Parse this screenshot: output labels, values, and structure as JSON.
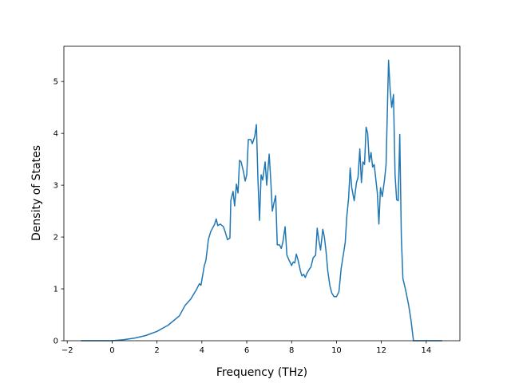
{
  "chart_data": {
    "type": "line",
    "xlabel": "Frequency (THz)",
    "ylabel": "Density of States",
    "color": "#1f77b4",
    "x": [
      -1.39,
      0,
      0.5,
      1.0,
      1.5,
      2.0,
      2.5,
      3.0,
      3.25,
      3.5,
      3.75,
      3.89,
      3.96,
      4.11,
      4.18,
      4.29,
      4.39,
      4.57,
      4.64,
      4.71,
      4.82,
      4.96,
      5.04,
      5.14,
      5.25,
      5.29,
      5.39,
      5.46,
      5.54,
      5.61,
      5.68,
      5.75,
      5.86,
      5.93,
      6.0,
      6.07,
      6.18,
      6.25,
      6.36,
      6.43,
      6.5,
      6.57,
      6.64,
      6.71,
      6.82,
      6.89,
      7.0,
      7.07,
      7.14,
      7.21,
      7.29,
      7.36,
      7.46,
      7.54,
      7.61,
      7.71,
      7.79,
      7.89,
      8.0,
      8.07,
      8.14,
      8.21,
      8.29,
      8.39,
      8.46,
      8.54,
      8.61,
      8.68,
      8.79,
      8.86,
      8.96,
      9.07,
      9.14,
      9.21,
      9.29,
      9.39,
      9.46,
      9.54,
      9.61,
      9.71,
      9.79,
      9.89,
      10.0,
      10.11,
      10.21,
      10.32,
      10.39,
      10.46,
      10.54,
      10.61,
      10.68,
      10.79,
      10.89,
      10.96,
      11.04,
      11.11,
      11.18,
      11.25,
      11.32,
      11.39,
      11.46,
      11.54,
      11.61,
      11.68,
      11.82,
      11.89,
      11.96,
      12.04,
      12.14,
      12.21,
      12.32,
      12.39,
      12.46,
      12.54,
      12.61,
      12.68,
      12.75,
      12.82,
      12.89,
      12.96,
      13.07,
      13.21,
      13.32,
      13.43,
      14.71
    ],
    "values": [
      0,
      0,
      0.02,
      0.05,
      0.1,
      0.18,
      0.3,
      0.48,
      0.68,
      0.8,
      0.98,
      1.1,
      1.07,
      1.45,
      1.55,
      1.95,
      2.1,
      2.25,
      2.35,
      2.22,
      2.25,
      2.2,
      2.1,
      1.95,
      1.98,
      2.7,
      2.88,
      2.6,
      3.02,
      2.85,
      3.48,
      3.45,
      3.25,
      3.08,
      3.2,
      3.88,
      3.88,
      3.8,
      3.95,
      4.17,
      3.1,
      2.32,
      3.2,
      3.1,
      3.45,
      3.0,
      3.6,
      3.1,
      2.5,
      2.65,
      2.8,
      1.85,
      1.85,
      1.78,
      1.9,
      2.2,
      1.65,
      1.55,
      1.45,
      1.52,
      1.5,
      1.67,
      1.55,
      1.35,
      1.25,
      1.28,
      1.22,
      1.3,
      1.38,
      1.42,
      1.6,
      1.65,
      2.17,
      1.95,
      1.75,
      2.15,
      2.0,
      1.7,
      1.35,
      1.05,
      0.92,
      0.85,
      0.85,
      0.95,
      1.4,
      1.7,
      1.9,
      2.4,
      2.75,
      3.33,
      2.95,
      2.7,
      3.05,
      3.15,
      3.7,
      3.05,
      3.45,
      3.4,
      4.12,
      4.0,
      3.45,
      3.63,
      3.35,
      3.4,
      2.85,
      2.25,
      2.95,
      2.78,
      3.1,
      3.4,
      5.41,
      4.85,
      4.5,
      4.75,
      3.2,
      2.72,
      2.7,
      3.98,
      2.0,
      1.2,
      1.0,
      0.7,
      0.4,
      0,
      0
    ],
    "xlim": [
      -2.15,
      15.5
    ],
    "xticks": [
      {
        "value": -2,
        "label": "−2"
      },
      0,
      2,
      4,
      6,
      8,
      10,
      12,
      14
    ],
    "ylim": [
      0,
      5.68
    ],
    "yticks": [
      0,
      1,
      2,
      3,
      4,
      5
    ]
  }
}
